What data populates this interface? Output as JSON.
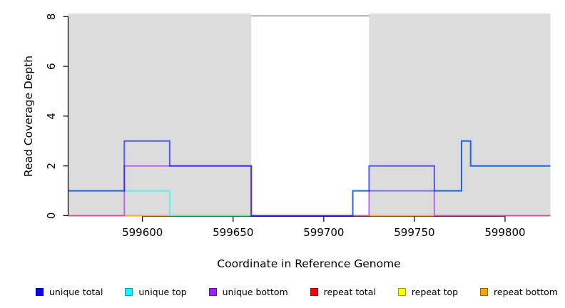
{
  "figure": {
    "background": "#FFFFFF"
  },
  "chart_data": {
    "type": "line",
    "step": true,
    "title": "",
    "xlabel": "Coordinate in Reference Genome",
    "ylabel": "Read Coverage Depth",
    "xlim": [
      599559,
      599825
    ],
    "ylim": [
      0,
      8
    ],
    "xticks": [
      599600,
      599650,
      599700,
      599750,
      599800
    ],
    "yticks": [
      0,
      2,
      4,
      6,
      8
    ],
    "grid": false,
    "legend_position": "bottom",
    "axis_color": "#000000",
    "band_color": "#DCDCDC",
    "shaded_regions": [
      [
        599559,
        599660
      ],
      [
        599725,
        599825
      ]
    ],
    "gap_top_line": {
      "x": [
        599660,
        599725
      ],
      "y": 8,
      "color": "#8C8C8C"
    },
    "line_opacity": 0.6,
    "line_width": 2,
    "draw_order": [
      3,
      4,
      5,
      1,
      2,
      0
    ],
    "series": [
      {
        "name": "unique total",
        "color": "#0000FF",
        "swatch_border": "#0000A0",
        "points": [
          [
            599559,
            1
          ],
          [
            599590,
            3
          ],
          [
            599615,
            2
          ],
          [
            599660,
            0
          ],
          [
            599716,
            1
          ],
          [
            599725,
            2
          ],
          [
            599761,
            1
          ],
          [
            599776,
            3
          ],
          [
            599781,
            2
          ]
        ]
      },
      {
        "name": "unique top",
        "color": "#00FFFF",
        "swatch_border": "#00A0A0",
        "points": [
          [
            599559,
            1
          ],
          [
            599615,
            0
          ],
          [
            599716,
            1
          ],
          [
            599776,
            3
          ],
          [
            599781,
            2
          ]
        ]
      },
      {
        "name": "unique bottom",
        "color": "#A020F0",
        "swatch_border": "#7000B0",
        "points": [
          [
            599559,
            0
          ],
          [
            599590,
            2
          ],
          [
            599660,
            0
          ],
          [
            599725,
            1
          ],
          [
            599761,
            0
          ]
        ]
      },
      {
        "name": "repeat total",
        "color": "#FF0000",
        "swatch_border": "#A00000",
        "points": [
          [
            599559,
            0
          ]
        ]
      },
      {
        "name": "repeat top",
        "color": "#FFFF00",
        "swatch_border": "#A0A000",
        "points": [
          [
            599559,
            0
          ]
        ]
      },
      {
        "name": "repeat bottom",
        "color": "#FFA500",
        "swatch_border": "#A06000",
        "points": [
          [
            599559,
            0
          ]
        ]
      }
    ]
  }
}
